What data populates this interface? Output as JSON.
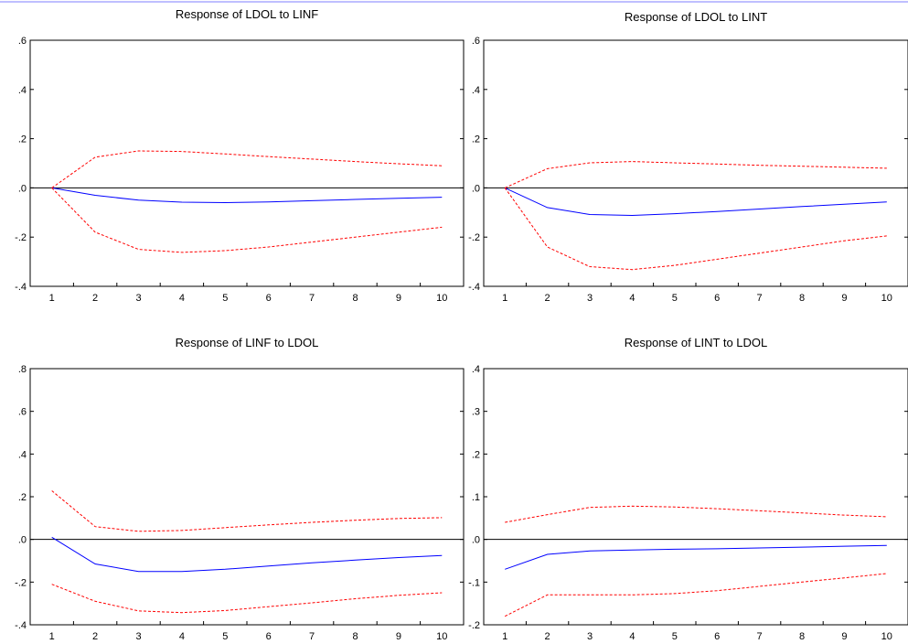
{
  "chart_data": [
    {
      "type": "line",
      "title": "Response of LDOL to LINF",
      "xlabel": "",
      "ylabel": "",
      "x": [
        1,
        2,
        3,
        4,
        5,
        6,
        7,
        8,
        9,
        10
      ],
      "xticks": [
        "1",
        "2",
        "3",
        "4",
        "5",
        "6",
        "7",
        "8",
        "9",
        "10"
      ],
      "ylim": [
        -0.4,
        0.6
      ],
      "yticks": [
        ".6",
        ".4",
        ".2",
        ".0",
        "-.2",
        "-.4"
      ],
      "ytick_values": [
        0.6,
        0.4,
        0.2,
        0.0,
        -0.2,
        -0.4
      ],
      "series": [
        {
          "role": "response",
          "color": "#0000ff",
          "style": "solid",
          "values": [
            0.0,
            -0.03,
            -0.05,
            -0.058,
            -0.06,
            -0.057,
            -0.052,
            -0.047,
            -0.042,
            -0.038
          ]
        },
        {
          "role": "upper_band",
          "color": "#ff0000",
          "style": "dashed",
          "values": [
            0.0,
            0.125,
            0.15,
            0.148,
            0.138,
            0.127,
            0.117,
            0.107,
            0.098,
            0.09
          ]
        },
        {
          "role": "lower_band",
          "color": "#ff0000",
          "style": "dashed",
          "values": [
            0.0,
            -0.18,
            -0.25,
            -0.262,
            -0.255,
            -0.24,
            -0.22,
            -0.2,
            -0.18,
            -0.16
          ]
        }
      ]
    },
    {
      "type": "line",
      "title": "Response of LDOL to LINT",
      "xlabel": "",
      "ylabel": "",
      "x": [
        1,
        2,
        3,
        4,
        5,
        6,
        7,
        8,
        9,
        10
      ],
      "xticks": [
        "1",
        "2",
        "3",
        "4",
        "5",
        "6",
        "7",
        "8",
        "9",
        "10"
      ],
      "ylim": [
        -0.4,
        0.6
      ],
      "yticks": [
        ".6",
        ".4",
        ".2",
        ".0",
        "-.2",
        "-.4"
      ],
      "ytick_values": [
        0.6,
        0.4,
        0.2,
        0.0,
        -0.2,
        -0.4
      ],
      "series": [
        {
          "role": "response",
          "color": "#0000ff",
          "style": "solid",
          "values": [
            0.0,
            -0.08,
            -0.108,
            -0.112,
            -0.105,
            -0.096,
            -0.086,
            -0.076,
            -0.066,
            -0.057
          ]
        },
        {
          "role": "upper_band",
          "color": "#ff0000",
          "style": "dashed",
          "values": [
            0.0,
            0.078,
            0.102,
            0.107,
            0.102,
            0.097,
            0.092,
            0.088,
            0.084,
            0.08
          ]
        },
        {
          "role": "lower_band",
          "color": "#ff0000",
          "style": "dashed",
          "values": [
            0.0,
            -0.24,
            -0.32,
            -0.332,
            -0.315,
            -0.29,
            -0.265,
            -0.24,
            -0.215,
            -0.195
          ]
        }
      ]
    },
    {
      "type": "line",
      "title": "Response of LINF to LDOL",
      "xlabel": "",
      "ylabel": "",
      "x": [
        1,
        2,
        3,
        4,
        5,
        6,
        7,
        8,
        9,
        10
      ],
      "xticks": [
        "1",
        "2",
        "3",
        "4",
        "5",
        "6",
        "7",
        "8",
        "9",
        "10"
      ],
      "ylim": [
        -0.4,
        0.8
      ],
      "yticks": [
        ".8",
        ".6",
        ".4",
        ".2",
        ".0",
        "-.2",
        "-.4"
      ],
      "ytick_values": [
        0.8,
        0.6,
        0.4,
        0.2,
        0.0,
        -0.2,
        -0.4
      ],
      "series": [
        {
          "role": "response",
          "color": "#0000ff",
          "style": "solid",
          "values": [
            0.01,
            -0.115,
            -0.15,
            -0.15,
            -0.14,
            -0.125,
            -0.11,
            -0.097,
            -0.085,
            -0.075
          ]
        },
        {
          "role": "upper_band",
          "color": "#ff0000",
          "style": "dashed",
          "values": [
            0.228,
            0.06,
            0.038,
            0.042,
            0.055,
            0.068,
            0.08,
            0.09,
            0.098,
            0.102
          ]
        },
        {
          "role": "lower_band",
          "color": "#ff0000",
          "style": "dashed",
          "values": [
            -0.21,
            -0.29,
            -0.335,
            -0.343,
            -0.333,
            -0.315,
            -0.297,
            -0.278,
            -0.262,
            -0.25
          ]
        }
      ]
    },
    {
      "type": "line",
      "title": "Response of LINT to LDOL",
      "xlabel": "",
      "ylabel": "",
      "x": [
        1,
        2,
        3,
        4,
        5,
        6,
        7,
        8,
        9,
        10
      ],
      "xticks": [
        "1",
        "2",
        "3",
        "4",
        "5",
        "6",
        "7",
        "8",
        "9",
        "10"
      ],
      "ylim": [
        -0.2,
        0.4
      ],
      "yticks": [
        ".4",
        ".3",
        ".2",
        ".1",
        ".0",
        "-.1",
        "-.2"
      ],
      "ytick_values": [
        0.4,
        0.3,
        0.2,
        0.1,
        0.0,
        -0.1,
        -0.2
      ],
      "series": [
        {
          "role": "response",
          "color": "#0000ff",
          "style": "solid",
          "values": [
            -0.07,
            -0.035,
            -0.027,
            -0.025,
            -0.023,
            -0.022,
            -0.02,
            -0.018,
            -0.016,
            -0.014
          ]
        },
        {
          "role": "upper_band",
          "color": "#ff0000",
          "style": "dashed",
          "values": [
            0.04,
            0.058,
            0.075,
            0.078,
            0.076,
            0.072,
            0.067,
            0.062,
            0.057,
            0.053
          ]
        },
        {
          "role": "lower_band",
          "color": "#ff0000",
          "style": "dashed",
          "values": [
            -0.18,
            -0.13,
            -0.13,
            -0.13,
            -0.127,
            -0.12,
            -0.11,
            -0.1,
            -0.09,
            -0.08
          ]
        }
      ]
    }
  ]
}
